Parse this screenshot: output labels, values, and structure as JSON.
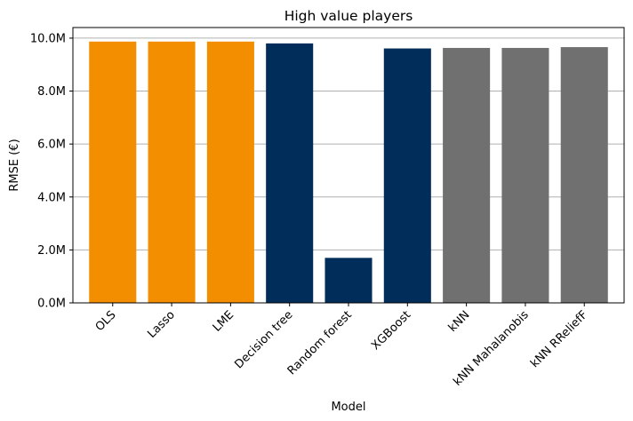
{
  "chart_data": {
    "type": "bar",
    "title": "High value players",
    "xlabel": "Model",
    "ylabel": "RMSE (€)",
    "categories": [
      "OLS",
      "Lasso",
      "LME",
      "Decision tree",
      "Random forest",
      "XGBoost",
      "kNN",
      "kNN Mahalanobis",
      "kNN RReliefF"
    ],
    "values": [
      9.87,
      9.87,
      9.87,
      9.8,
      1.7,
      9.61,
      9.63,
      9.63,
      9.66
    ],
    "value_unit": "M",
    "bar_colors": [
      "#F28E00",
      "#F28E00",
      "#F28E00",
      "#002D5A",
      "#002D5A",
      "#002D5A",
      "#707070",
      "#707070",
      "#707070"
    ],
    "ylim": [
      0,
      10.4
    ],
    "yticks": [
      0,
      2,
      4,
      6,
      8,
      10
    ],
    "ytick_labels": [
      "0.0M",
      "2.0M",
      "4.0M",
      "6.0M",
      "8.0M",
      "10.0M"
    ],
    "grid": "y",
    "legend": "none",
    "xtick_rotation": "45deg"
  }
}
